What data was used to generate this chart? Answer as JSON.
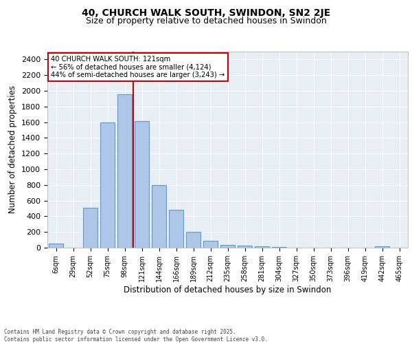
{
  "title": "40, CHURCH WALK SOUTH, SWINDON, SN2 2JE",
  "subtitle": "Size of property relative to detached houses in Swindon",
  "xlabel": "Distribution of detached houses by size in Swindon",
  "ylabel": "Number of detached properties",
  "categories": [
    "6sqm",
    "29sqm",
    "52sqm",
    "75sqm",
    "98sqm",
    "121sqm",
    "144sqm",
    "166sqm",
    "189sqm",
    "212sqm",
    "235sqm",
    "258sqm",
    "281sqm",
    "304sqm",
    "327sqm",
    "350sqm",
    "373sqm",
    "396sqm",
    "419sqm",
    "442sqm",
    "465sqm"
  ],
  "values": [
    55,
    0,
    510,
    1600,
    1960,
    1610,
    800,
    480,
    200,
    85,
    38,
    22,
    15,
    8,
    3,
    0,
    0,
    0,
    0,
    15,
    0
  ],
  "bar_color": "#aec6e8",
  "bar_edge_color": "#5b9bd5",
  "highlight_line_color": "#cc0000",
  "annotation_text": "40 CHURCH WALK SOUTH: 121sqm\n← 56% of detached houses are smaller (4,124)\n44% of semi-detached houses are larger (3,243) →",
  "annotation_box_color": "#ffffff",
  "annotation_box_edge": "#cc0000",
  "ylim": [
    0,
    2500
  ],
  "yticks": [
    0,
    200,
    400,
    600,
    800,
    1000,
    1200,
    1400,
    1600,
    1800,
    2000,
    2200,
    2400
  ],
  "background_color": "#e8eef5",
  "footer": "Contains HM Land Registry data © Crown copyright and database right 2025.\nContains public sector information licensed under the Open Government Licence v3.0.",
  "title_fontsize": 10,
  "subtitle_fontsize": 9,
  "highlight_category": "121sqm"
}
